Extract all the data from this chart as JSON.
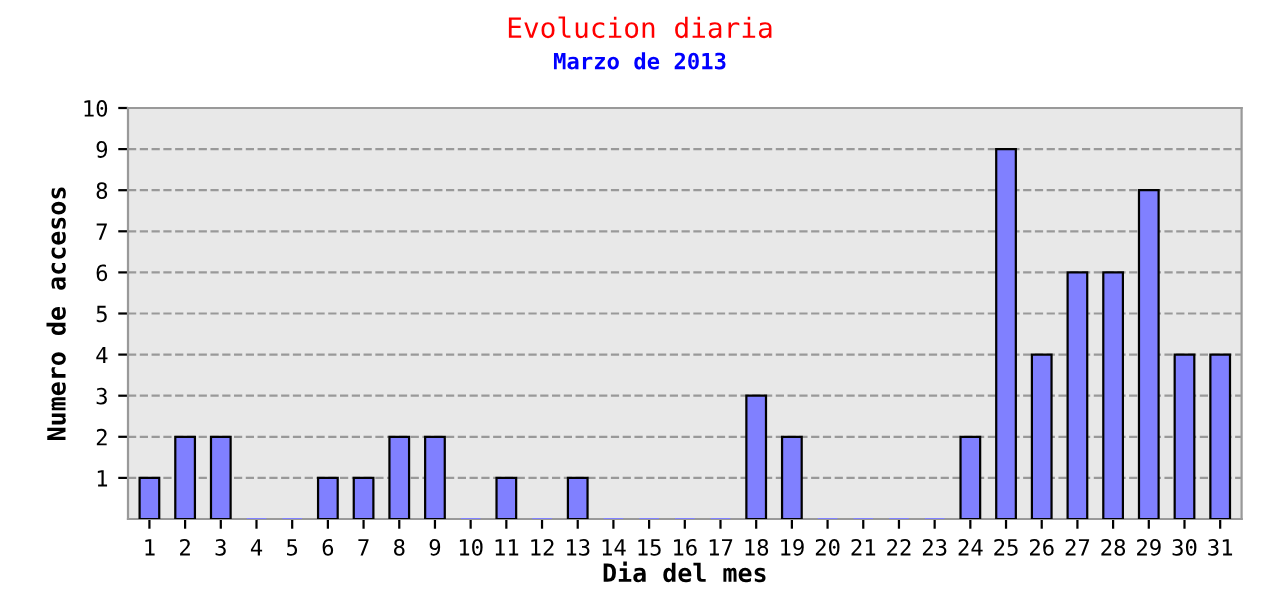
{
  "chart_data": {
    "type": "bar",
    "title": "Evolucion diaria",
    "subtitle": "Marzo de 2013",
    "xlabel": "Dia del mes",
    "ylabel": "Numero de accesos",
    "categories": [
      "1",
      "2",
      "3",
      "4",
      "5",
      "6",
      "7",
      "8",
      "9",
      "10",
      "11",
      "12",
      "13",
      "14",
      "15",
      "16",
      "17",
      "18",
      "19",
      "20",
      "21",
      "22",
      "23",
      "24",
      "25",
      "26",
      "27",
      "28",
      "29",
      "30",
      "31"
    ],
    "values": [
      1,
      2,
      2,
      0,
      0,
      1,
      1,
      2,
      2,
      0,
      1,
      0,
      1,
      0,
      0,
      0,
      0,
      3,
      2,
      0,
      0,
      0,
      0,
      2,
      9,
      4,
      6,
      6,
      8,
      4,
      4
    ],
    "color": "#8080ff",
    "ylim": [
      0,
      10
    ],
    "yticks": [
      1,
      2,
      3,
      4,
      5,
      6,
      7,
      8,
      9,
      10
    ],
    "grid": "y",
    "legend": false
  }
}
